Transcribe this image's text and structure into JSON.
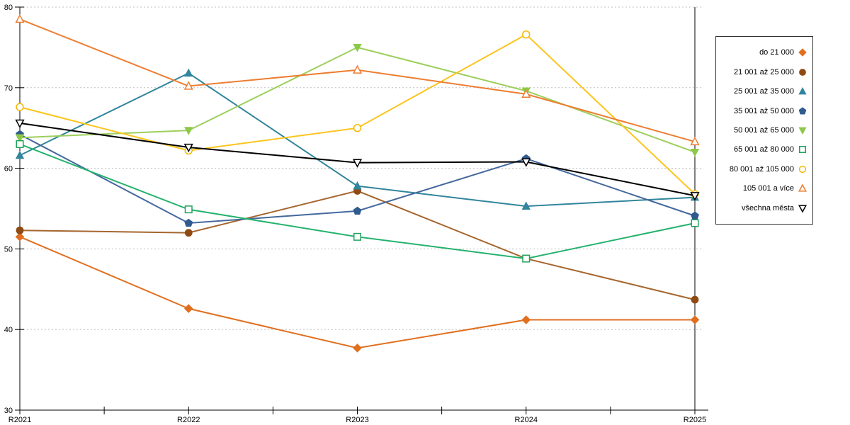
{
  "chart_data": {
    "type": "line",
    "title": "",
    "xlabel": "",
    "ylabel": "",
    "categories": [
      "R2021",
      "R2022",
      "R2023",
      "R2024",
      "R2025"
    ],
    "ylim": [
      30,
      80
    ],
    "yticks": [
      30,
      40,
      50,
      60,
      70,
      80
    ],
    "grid": "horizontal-dashed",
    "gridline_color": "#bfbfbf",
    "axis_color": "#000000",
    "legend_position": "right-outside-box",
    "series": [
      {
        "id": "do-21000",
        "name": "do 21 000",
        "color": "#E06F1F",
        "marker": "diamond",
        "marker_style": "filled",
        "marker_color": "#E06F1F",
        "values": [
          51.5,
          42.6,
          37.7,
          41.2,
          41.2
        ]
      },
      {
        "id": "21001-25000",
        "name": "21 001 až 25 000",
        "color": "#A5662E",
        "marker": "circle",
        "marker_style": "filled",
        "marker_color": "#8F4A14",
        "values": [
          52.3,
          52.0,
          57.2,
          48.8,
          43.7
        ]
      },
      {
        "id": "25001-35000",
        "name": "25 001 až 35 000",
        "color": "#31859C",
        "marker": "triangle-up",
        "marker_style": "filled",
        "marker_color": "#31859C",
        "values": [
          61.6,
          71.8,
          57.8,
          55.3,
          56.4
        ]
      },
      {
        "id": "35001-50000",
        "name": "35 001 až 50 000",
        "color": "#44689D",
        "marker": "pentagon",
        "marker_style": "filled",
        "marker_color": "#2F5B8F",
        "values": [
          64.2,
          53.2,
          54.7,
          61.2,
          54.1
        ]
      },
      {
        "id": "50001-65000",
        "name": "50 001 až 65 000",
        "color": "#9CCF5B",
        "marker": "triangle-down",
        "marker_style": "filled",
        "marker_color": "#8DC84A",
        "values": [
          63.8,
          64.7,
          75.0,
          69.6,
          62.0
        ]
      },
      {
        "id": "65001-80000",
        "name": "65 001 až 80 000",
        "color": "#25B26E",
        "marker": "square",
        "marker_style": "open",
        "marker_color": "#1FA35C",
        "values": [
          63.0,
          54.9,
          51.5,
          48.8,
          53.2
        ]
      },
      {
        "id": "80001-105000",
        "name": "80 001 až 105 000",
        "color": "#FCC41D",
        "marker": "circle",
        "marker_style": "open",
        "marker_color": "#F5B800",
        "values": [
          67.6,
          62.2,
          65.0,
          76.6,
          56.8
        ]
      },
      {
        "id": "105001-plus",
        "name": "105 001 a více",
        "color": "#ED7D31",
        "marker": "triangle-up",
        "marker_style": "open",
        "marker_color": "#ED7D31",
        "values": [
          78.5,
          70.2,
          72.2,
          69.2,
          63.3
        ]
      },
      {
        "id": "vsechna-mesta",
        "name": "všechna města",
        "color": "#000000",
        "marker": "triangle-down",
        "marker_style": "open",
        "marker_color": "#000000",
        "values": [
          65.6,
          62.6,
          60.7,
          60.8,
          56.6
        ]
      }
    ]
  }
}
